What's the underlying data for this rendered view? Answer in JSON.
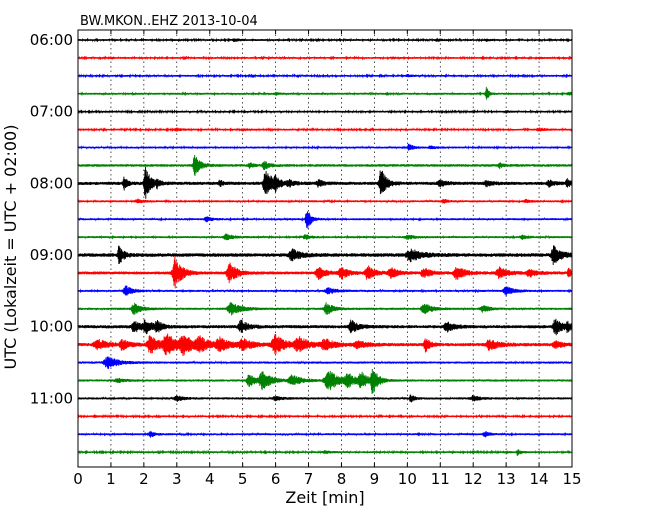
{
  "chart_data": {
    "type": "line",
    "title": "BW.MKON..EHZ 2013-10-04",
    "xlabel": "Zeit  [min]",
    "ylabel": "UTC (Lokalzeit = UTC + 02:00)",
    "xlim": [
      0,
      15
    ],
    "x_ticks": [
      0,
      1,
      2,
      3,
      4,
      5,
      6,
      7,
      8,
      9,
      10,
      11,
      12,
      13,
      14,
      15
    ],
    "y_tick_labels": [
      {
        "row": 0,
        "label": "06:00"
      },
      {
        "row": 4,
        "label": "07:00"
      },
      {
        "row": 8,
        "label": "08:00"
      },
      {
        "row": 12,
        "label": "09:00"
      },
      {
        "row": 16,
        "label": "10:00"
      },
      {
        "row": 20,
        "label": "11:00"
      }
    ],
    "grid": "x-dotted",
    "colors": [
      "#000000",
      "#ff0000",
      "#0000ff",
      "#008000"
    ],
    "traces": [
      {
        "time": "06:00",
        "noise": 0.9,
        "events": [
          [
            4.75,
            1.5,
            0.15
          ],
          [
            10.9,
            1.2,
            0.15
          ],
          [
            12.4,
            1.0,
            0.1
          ]
        ]
      },
      {
        "time": "06:15",
        "noise": 0.9,
        "events": [
          [
            1.0,
            1.0,
            0.1
          ],
          [
            14.0,
            1.0,
            0.1
          ]
        ]
      },
      {
        "time": "06:30",
        "noise": 0.9,
        "events": [
          [
            10.0,
            1.2,
            0.15
          ]
        ]
      },
      {
        "time": "06:45",
        "noise": 1.0,
        "events": [
          [
            6.0,
            1.2,
            0.1
          ],
          [
            12.4,
            9.0,
            0.06
          ],
          [
            14.9,
            1.5,
            0.15
          ]
        ]
      },
      {
        "time": "07:00",
        "noise": 0.9,
        "events": [
          [
            13.0,
            1.0,
            0.1
          ]
        ]
      },
      {
        "time": "07:15",
        "noise": 0.9,
        "events": [
          [
            3.0,
            1.2,
            0.2
          ],
          [
            5.0,
            1.0,
            0.15
          ],
          [
            14.0,
            1.5,
            0.2
          ]
        ]
      },
      {
        "time": "07:30",
        "noise": 1.0,
        "events": [
          [
            10.05,
            4.0,
            0.1
          ],
          [
            10.7,
            1.5,
            0.15
          ]
        ]
      },
      {
        "time": "07:45",
        "noise": 1.3,
        "events": [
          [
            3.55,
            11.0,
            0.15
          ],
          [
            5.2,
            3.0,
            0.1
          ],
          [
            5.65,
            4.0,
            0.15
          ],
          [
            12.8,
            2.5,
            0.1
          ]
        ]
      },
      {
        "time": "08:00",
        "noise": 1.6,
        "events": [
          [
            1.4,
            6.0,
            0.1
          ],
          [
            2.05,
            16.0,
            0.15
          ],
          [
            2.4,
            3.0,
            0.1
          ],
          [
            4.3,
            3.0,
            0.1
          ],
          [
            5.7,
            14.0,
            0.2
          ],
          [
            6.0,
            5.0,
            0.12
          ],
          [
            6.4,
            3.0,
            0.15
          ],
          [
            7.3,
            3.0,
            0.15
          ],
          [
            9.2,
            15.0,
            0.15
          ],
          [
            11.0,
            2.5,
            0.2
          ],
          [
            12.4,
            2.5,
            0.2
          ],
          [
            14.3,
            3.0,
            0.15
          ],
          [
            14.85,
            4.0,
            0.1
          ]
        ]
      },
      {
        "time": "08:15",
        "noise": 1.0,
        "events": [
          [
            1.8,
            2.0,
            0.15
          ],
          [
            11.1,
            1.8,
            0.15
          ],
          [
            13.6,
            1.5,
            0.15
          ]
        ]
      },
      {
        "time": "08:30",
        "noise": 1.0,
        "events": [
          [
            3.9,
            2.5,
            0.15
          ],
          [
            6.95,
            11.0,
            0.12
          ]
        ]
      },
      {
        "time": "08:45",
        "noise": 1.0,
        "events": [
          [
            4.5,
            3.0,
            0.2
          ],
          [
            6.9,
            2.5,
            0.15
          ],
          [
            10.0,
            2.0,
            0.2
          ],
          [
            13.5,
            2.0,
            0.15
          ]
        ]
      },
      {
        "time": "09:00",
        "noise": 1.8,
        "events": [
          [
            1.25,
            10.0,
            0.12
          ],
          [
            6.5,
            6.0,
            0.25
          ],
          [
            10.1,
            6.0,
            0.3
          ],
          [
            14.45,
            9.0,
            0.2
          ]
        ]
      },
      {
        "time": "09:15",
        "noise": 1.5,
        "events": [
          [
            2.95,
            16.0,
            0.2
          ],
          [
            4.6,
            11.0,
            0.2
          ],
          [
            7.3,
            6.0,
            0.2
          ],
          [
            8.0,
            6.0,
            0.2
          ],
          [
            8.8,
            7.0,
            0.2
          ],
          [
            9.5,
            5.0,
            0.2
          ],
          [
            10.5,
            5.0,
            0.2
          ],
          [
            11.5,
            6.0,
            0.25
          ],
          [
            12.8,
            5.0,
            0.25
          ],
          [
            13.7,
            4.0,
            0.2
          ],
          [
            14.9,
            4.0,
            0.1
          ]
        ]
      },
      {
        "time": "09:30",
        "noise": 1.0,
        "events": [
          [
            1.45,
            5.0,
            0.2
          ],
          [
            7.6,
            3.0,
            0.25
          ],
          [
            13.0,
            4.0,
            0.25
          ]
        ]
      },
      {
        "time": "09:45",
        "noise": 1.1,
        "events": [
          [
            1.7,
            6.0,
            0.2
          ],
          [
            4.65,
            6.0,
            0.3
          ],
          [
            7.55,
            6.0,
            0.2
          ],
          [
            10.5,
            6.0,
            0.2
          ],
          [
            12.3,
            3.0,
            0.2
          ]
        ]
      },
      {
        "time": "10:00",
        "noise": 1.6,
        "events": [
          [
            1.7,
            6.0,
            0.2
          ],
          [
            2.05,
            6.0,
            0.2
          ],
          [
            2.4,
            5.0,
            0.15
          ],
          [
            4.95,
            6.0,
            0.2
          ],
          [
            8.3,
            6.0,
            0.2
          ],
          [
            11.2,
            5.0,
            0.2
          ],
          [
            14.5,
            8.0,
            0.2
          ],
          [
            14.85,
            4.0,
            0.1
          ]
        ]
      },
      {
        "time": "10:15",
        "noise": 1.6,
        "events": [
          [
            0.6,
            5.0,
            0.3
          ],
          [
            1.35,
            5.0,
            0.2
          ],
          [
            2.2,
            9.0,
            0.25
          ],
          [
            2.7,
            10.0,
            0.3
          ],
          [
            3.2,
            8.0,
            0.3
          ],
          [
            3.7,
            6.0,
            0.3
          ],
          [
            4.3,
            6.0,
            0.3
          ],
          [
            5.0,
            5.0,
            0.3
          ],
          [
            6.0,
            9.0,
            0.3
          ],
          [
            6.7,
            7.0,
            0.3
          ],
          [
            7.5,
            5.0,
            0.3
          ],
          [
            8.5,
            3.0,
            0.3
          ],
          [
            10.55,
            7.0,
            0.12
          ],
          [
            12.5,
            5.0,
            0.3
          ],
          [
            14.5,
            3.0,
            0.25
          ]
        ]
      },
      {
        "time": "10:30",
        "noise": 1.1,
        "events": [
          [
            0.9,
            6.0,
            0.3
          ]
        ]
      },
      {
        "time": "10:45",
        "noise": 1.1,
        "events": [
          [
            1.2,
            2.0,
            0.2
          ],
          [
            5.2,
            6.0,
            0.2
          ],
          [
            5.6,
            9.0,
            0.25
          ],
          [
            6.5,
            5.0,
            0.3
          ],
          [
            7.6,
            11.0,
            0.3
          ],
          [
            8.2,
            6.0,
            0.25
          ],
          [
            8.6,
            7.0,
            0.2
          ],
          [
            8.95,
            13.0,
            0.15
          ]
        ]
      },
      {
        "time": "11:00",
        "noise": 1.1,
        "events": [
          [
            3.0,
            2.5,
            0.2
          ],
          [
            6.0,
            2.0,
            0.2
          ],
          [
            10.1,
            4.0,
            0.1
          ],
          [
            12.0,
            2.5,
            0.2
          ]
        ]
      },
      {
        "time": "11:15",
        "noise": 0.9,
        "events": [
          [
            0.5,
            1.0,
            0.1
          ]
        ]
      },
      {
        "time": "11:30",
        "noise": 1.0,
        "events": [
          [
            2.2,
            3.0,
            0.12
          ],
          [
            12.35,
            3.0,
            0.12
          ]
        ]
      },
      {
        "time": "11:45",
        "noise": 0.9,
        "events": [
          [
            7.5,
            1.2,
            0.2
          ],
          [
            13.0,
            1.0,
            0.1
          ],
          [
            13.35,
            3.0,
            0.1
          ]
        ]
      }
    ]
  }
}
